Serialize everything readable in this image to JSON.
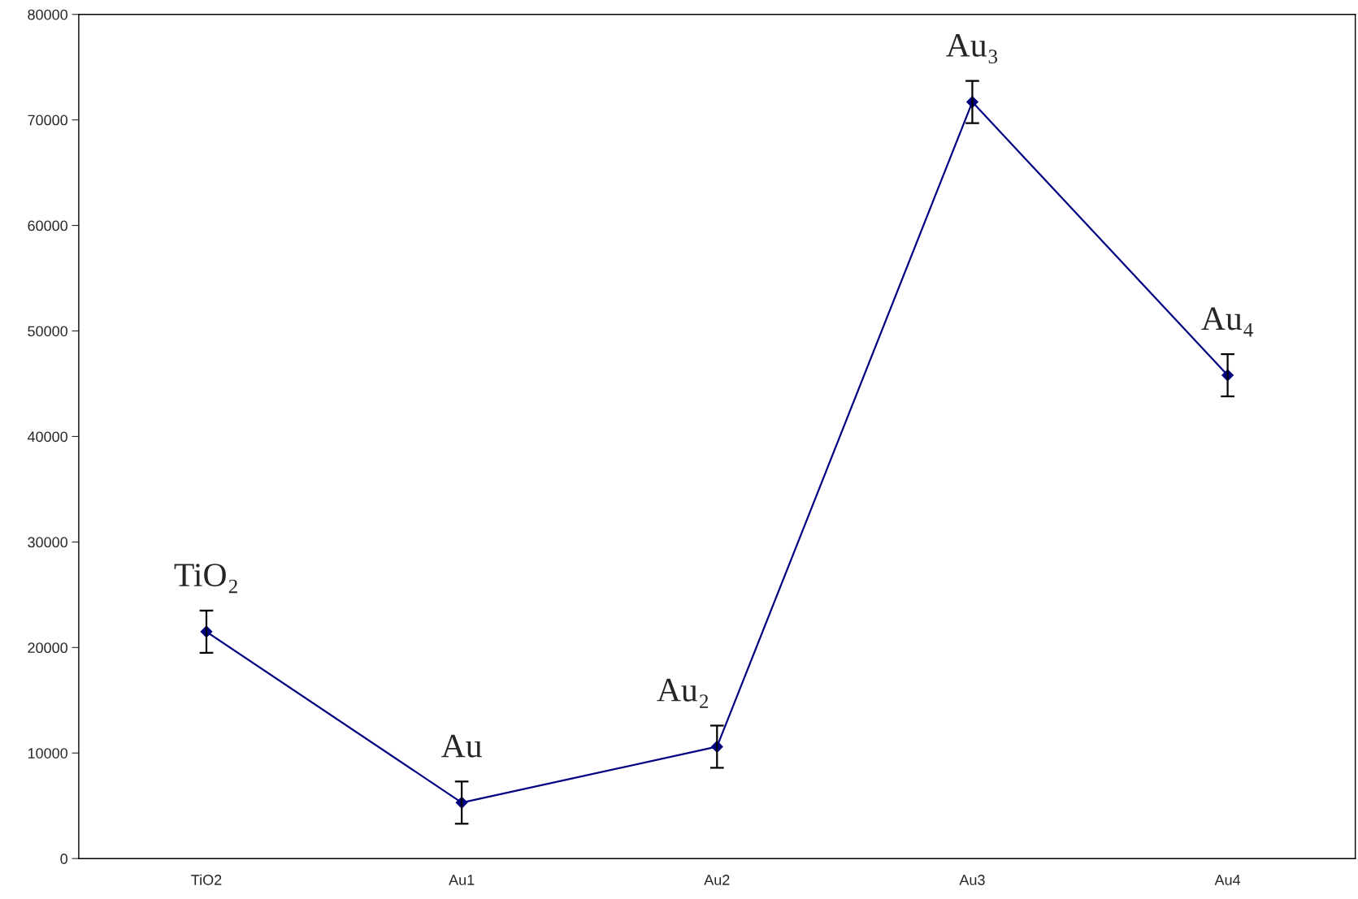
{
  "chart_data": {
    "type": "line",
    "categories": [
      "TiO2",
      "Au1",
      "Au2",
      "Au3",
      "Au4"
    ],
    "series": [
      {
        "color": "#000080",
        "values": [
          21500,
          5300,
          10600,
          71700,
          45800
        ],
        "errors": [
          2000,
          2000,
          2000,
          2000,
          2000
        ]
      }
    ],
    "ylim": [
      0,
      80000
    ],
    "yticks": [
      0,
      10000,
      20000,
      30000,
      40000,
      50000,
      60000,
      70000,
      80000
    ],
    "marker": "diamond",
    "line_style": "solid",
    "grid": false,
    "annotations": [
      "TiO₂",
      "Au",
      "Au₂",
      "Au₃",
      "Au₄"
    ]
  }
}
